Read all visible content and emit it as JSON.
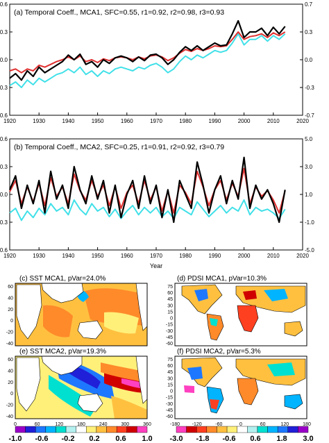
{
  "chart_data": [
    {
      "type": "line",
      "panel_title": "(a) Temporal Coeff., MCA1, SFC=0.55, r1=0.92, r2=0.98, r3=0.93",
      "xlabel": "",
      "xlim": [
        1920,
        2020
      ],
      "x_ticks": [
        "1920",
        "1930",
        "1940",
        "1950",
        "1960",
        "1970",
        "1980",
        "1990",
        "2000",
        "2010",
        "2020"
      ],
      "ylim_left": [
        -0.6,
        0.6
      ],
      "y_ticks_left": [
        "-0.6",
        "-0.3",
        "0.0",
        "0.3",
        "0.6"
      ],
      "ylim_right": [
        -0.7,
        0.7
      ],
      "y_ticks_right": [
        "-0.7",
        "-0.3",
        "0.0",
        "0.3",
        "0.7"
      ],
      "grid": false,
      "x": [
        1920,
        1922,
        1924,
        1926,
        1928,
        1930,
        1932,
        1934,
        1936,
        1938,
        1940,
        1942,
        1944,
        1946,
        1948,
        1950,
        1952,
        1954,
        1956,
        1958,
        1960,
        1962,
        1964,
        1966,
        1968,
        1970,
        1972,
        1974,
        1976,
        1978,
        1980,
        1982,
        1984,
        1986,
        1988,
        1990,
        1992,
        1994,
        1996,
        1998,
        2000,
        2002,
        2004,
        2006,
        2008,
        2010,
        2012,
        2014
      ],
      "series": [
        {
          "color": "#000000",
          "values": [
            -0.2,
            -0.15,
            -0.22,
            -0.12,
            -0.18,
            -0.08,
            -0.14,
            -0.1,
            -0.06,
            -0.02,
            0.05,
            0.0,
            0.06,
            -0.05,
            -0.02,
            -0.08,
            0.0,
            -0.04,
            0.02,
            0.04,
            0.02,
            -0.02,
            0.03,
            -0.01,
            0.05,
            0.06,
            0.02,
            -0.05,
            0.0,
            0.08,
            0.14,
            0.1,
            0.15,
            0.1,
            0.14,
            0.18,
            0.15,
            0.16,
            0.28,
            0.42,
            0.24,
            0.3,
            0.3,
            0.34,
            0.26,
            0.35,
            0.28,
            0.36
          ]
        },
        {
          "color": "#e03030",
          "values": [
            -0.12,
            -0.1,
            -0.14,
            -0.1,
            -0.12,
            -0.06,
            -0.08,
            -0.05,
            -0.02,
            0.0,
            0.03,
            0.0,
            0.04,
            -0.02,
            0.0,
            -0.03,
            0.01,
            -0.01,
            0.02,
            0.03,
            0.02,
            0.0,
            0.03,
            0.01,
            0.04,
            0.05,
            0.03,
            -0.01,
            0.02,
            0.07,
            0.11,
            0.09,
            0.12,
            0.1,
            0.12,
            0.15,
            0.14,
            0.15,
            0.22,
            0.3,
            0.22,
            0.25,
            0.26,
            0.28,
            0.24,
            0.29,
            0.26,
            0.3
          ]
        },
        {
          "color": "#40e0e8",
          "values": [
            -0.28,
            -0.24,
            -0.3,
            -0.22,
            -0.27,
            -0.2,
            -0.24,
            -0.2,
            -0.16,
            -0.14,
            -0.1,
            -0.14,
            -0.08,
            -0.16,
            -0.12,
            -0.18,
            -0.12,
            -0.15,
            -0.1,
            -0.08,
            -0.1,
            -0.12,
            -0.08,
            -0.1,
            -0.06,
            -0.04,
            -0.08,
            -0.14,
            -0.1,
            -0.02,
            0.04,
            0.0,
            0.05,
            0.02,
            0.06,
            0.1,
            0.08,
            0.1,
            0.18,
            0.28,
            0.16,
            0.22,
            0.22,
            0.26,
            0.2,
            0.26,
            0.22,
            0.28
          ]
        }
      ]
    },
    {
      "type": "line",
      "panel_title": "(b) Temporal Coeff., MCA2, SFC=0.25, r1=0.91, r2=0.92, r3=0.79",
      "xlabel": "Year",
      "xlim": [
        1920,
        2020
      ],
      "x_ticks": [
        "1920",
        "1930",
        "1940",
        "1950",
        "1960",
        "1970",
        "1980",
        "1990",
        "2000",
        "2010",
        "2020"
      ],
      "ylim_left": [
        -0.6,
        0.6
      ],
      "y_ticks_left": [
        "-0.6",
        "-0.3",
        "0.0",
        "0.3",
        "0.6"
      ],
      "ylim_right": [
        -5.0,
        5.0
      ],
      "y_ticks_right": [
        "-5.0",
        "-1.0",
        "1.0",
        "3.0",
        "5.0"
      ],
      "grid": false,
      "x": [
        1920,
        1922,
        1924,
        1926,
        1928,
        1930,
        1932,
        1934,
        1936,
        1938,
        1940,
        1942,
        1944,
        1946,
        1948,
        1950,
        1952,
        1954,
        1956,
        1958,
        1960,
        1962,
        1964,
        1966,
        1968,
        1970,
        1972,
        1974,
        1976,
        1978,
        1980,
        1982,
        1984,
        1986,
        1988,
        1990,
        1992,
        1994,
        1996,
        1998,
        2000,
        2002,
        2004,
        2006,
        2008,
        2010,
        2012,
        2014
      ],
      "series": [
        {
          "color": "#000000",
          "values": [
            0.05,
            0.2,
            -0.15,
            0.1,
            -0.1,
            0.15,
            -0.2,
            0.25,
            -0.05,
            0.1,
            -0.15,
            0.3,
            0.05,
            -0.1,
            0.2,
            -0.05,
            0.15,
            -0.2,
            0.1,
            -0.25,
            0.0,
            0.15,
            -0.15,
            0.2,
            -0.1,
            0.1,
            -0.25,
            0.05,
            -0.3,
            0.15,
            0.0,
            -0.15,
            0.35,
            0.1,
            -0.2,
            0.05,
            0.2,
            -0.1,
            0.15,
            -0.05,
            0.4,
            -0.15,
            0.1,
            -0.05,
            0.05,
            -0.1,
            -0.3,
            0.05
          ]
        },
        {
          "color": "#e03030",
          "values": [
            0.03,
            0.15,
            -0.1,
            0.08,
            -0.08,
            0.12,
            -0.12,
            0.18,
            -0.02,
            0.08,
            -0.1,
            0.22,
            0.04,
            -0.06,
            0.15,
            -0.02,
            0.1,
            -0.12,
            0.08,
            -0.15,
            0.02,
            0.1,
            -0.1,
            0.15,
            -0.06,
            0.08,
            -0.18,
            0.04,
            -0.2,
            0.1,
            0.02,
            -0.1,
            0.25,
            0.08,
            -0.12,
            0.05,
            0.15,
            -0.06,
            0.12,
            -0.02,
            0.28,
            -0.1,
            0.08,
            -0.02,
            0.04,
            -0.06,
            -0.2,
            0.04
          ]
        },
        {
          "color": "#40e0e8",
          "values": [
            -0.2,
            -0.15,
            -0.28,
            -0.18,
            -0.25,
            -0.15,
            -0.22,
            -0.1,
            -0.18,
            -0.14,
            -0.22,
            -0.06,
            -0.16,
            -0.22,
            -0.1,
            -0.18,
            -0.14,
            -0.24,
            -0.16,
            -0.26,
            -0.18,
            -0.12,
            -0.22,
            -0.14,
            -0.2,
            -0.14,
            -0.24,
            -0.18,
            -0.26,
            -0.14,
            -0.18,
            -0.22,
            -0.08,
            -0.16,
            -0.24,
            -0.18,
            -0.12,
            -0.2,
            -0.14,
            -0.18,
            -0.06,
            -0.22,
            -0.14,
            -0.18,
            -0.16,
            -0.2,
            -0.26,
            -0.16
          ]
        }
      ]
    },
    {
      "type": "heatmap",
      "panel_title": "(c) SST MCA1, pVar=24.0%",
      "y_ticks": [
        "60",
        "40",
        "20",
        "0",
        "-20",
        "-40"
      ],
      "x_ticks": []
    },
    {
      "type": "heatmap",
      "panel_title": "(d) PDSI MCA1, pVar=10.3%",
      "y_ticks": [
        "75",
        "60",
        "45",
        "30",
        "15",
        "0",
        "-15",
        "-30",
        "-45",
        "-60"
      ],
      "x_ticks": []
    },
    {
      "type": "heatmap",
      "panel_title": "(e) SST MCA2, pVar=19.3%",
      "y_ticks": [
        "60",
        "40",
        "20",
        "0",
        "-20",
        "-40"
      ],
      "x_ticks": [
        "0",
        "60",
        "120",
        "180",
        "240",
        "300",
        "360"
      ]
    },
    {
      "type": "heatmap",
      "panel_title": "(f) PDSI MCA2, pVar=5.3%",
      "y_ticks": [
        "75",
        "60",
        "45",
        "30",
        "15",
        "0",
        "-15",
        "-30",
        "-45",
        "-60"
      ],
      "x_ticks": [
        "-180",
        "-120",
        "-60",
        "0",
        "60",
        "120",
        "180"
      ]
    }
  ],
  "colorbars": {
    "sst": {
      "labels": [
        "-1.0",
        "-0.6",
        "-0.2",
        "0.2",
        "0.6",
        "1.0"
      ],
      "colors": [
        "#9a00c8",
        "#2020d8",
        "#1e78ff",
        "#00b4ff",
        "#00e0d0",
        "#b4f0f0",
        "#ffffff",
        "#fff07a",
        "#ffc040",
        "#ff8a2a",
        "#ff4020",
        "#d00000",
        "#ff40c0"
      ]
    },
    "pdsi": {
      "labels": [
        "-3.0",
        "-1.8",
        "-0.6",
        "0.6",
        "1.8",
        "3.0"
      ],
      "colors": [
        "#ff40c0",
        "#d00000",
        "#ff4020",
        "#ff8a2a",
        "#ffc040",
        "#fff07a",
        "#ffffff",
        "#b4f0f0",
        "#00e0d0",
        "#00b4ff",
        "#1e78ff",
        "#2020d8",
        "#9a00c8"
      ]
    }
  }
}
